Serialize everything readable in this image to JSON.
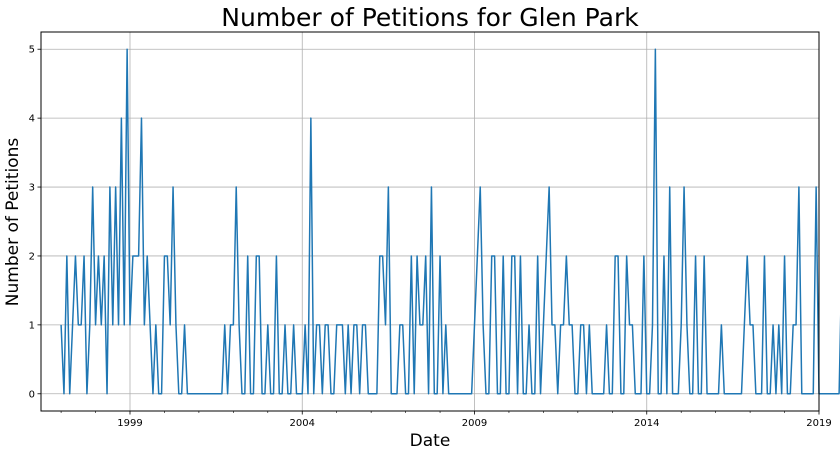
{
  "chart_data": {
    "type": "line",
    "title": "Number of Petitions for Glen Park",
    "xlabel": "Date",
    "ylabel": "Number of Petitions",
    "x_range": [
      "1996-06",
      "2019-01"
    ],
    "ylim": [
      -0.25,
      5.25
    ],
    "x_ticks": [
      {
        "date": "1999-01",
        "label": "1999"
      },
      {
        "date": "2004-01",
        "label": "2004"
      },
      {
        "date": "2009-01",
        "label": "2009"
      },
      {
        "date": "2014-01",
        "label": "2014"
      },
      {
        "date": "2019-01",
        "label": "2019"
      }
    ],
    "y_ticks": [
      {
        "value": 0,
        "label": "0"
      },
      {
        "value": 1,
        "label": "1"
      },
      {
        "value": 2,
        "label": "2"
      },
      {
        "value": 3,
        "label": "3"
      },
      {
        "value": 4,
        "label": "4"
      },
      {
        "value": 5,
        "label": "5"
      }
    ],
    "grid": true,
    "line_color": "#1f77b4",
    "start_month": "1997-01",
    "series": [
      {
        "values": [
          1,
          0,
          2,
          0,
          1,
          2,
          1,
          1,
          2,
          0,
          1,
          3,
          1,
          2,
          1,
          2,
          0,
          3,
          1,
          3,
          1,
          4,
          1,
          5,
          1,
          2,
          2,
          2,
          4,
          1,
          2,
          1,
          0,
          1,
          0,
          0,
          2,
          2,
          1,
          3,
          1,
          0,
          0,
          1,
          0,
          0,
          0,
          0,
          0,
          0,
          0,
          0,
          0,
          0,
          0,
          0,
          0,
          1,
          0,
          1,
          1,
          3,
          1,
          0,
          0,
          2,
          0,
          0,
          2,
          2,
          0,
          0,
          1,
          0,
          0,
          2,
          0,
          0,
          1,
          0,
          0,
          1,
          0,
          0,
          0,
          1,
          0,
          4,
          0,
          1,
          1,
          0,
          1,
          1,
          0,
          0,
          1,
          1,
          1,
          0,
          1,
          0,
          1,
          1,
          0,
          1,
          1,
          0,
          0,
          0,
          0,
          2,
          2,
          1,
          3,
          0,
          0,
          0,
          1,
          1,
          0,
          0,
          2,
          0,
          2,
          1,
          1,
          2,
          0,
          3,
          0,
          0,
          2,
          0,
          1,
          0,
          0,
          0,
          0,
          0,
          0,
          0,
          0,
          0,
          1,
          2,
          3,
          1,
          0,
          0,
          2,
          2,
          0,
          0,
          2,
          0,
          0,
          2,
          2,
          0,
          2,
          0,
          0,
          1,
          0,
          0,
          2,
          0,
          1,
          2,
          3,
          1,
          1,
          0,
          1,
          1,
          2,
          1,
          1,
          0,
          0,
          1,
          1,
          0,
          1,
          0,
          0,
          0,
          0,
          0,
          1,
          0,
          0,
          2,
          2,
          0,
          0,
          2,
          1,
          1,
          0,
          0,
          0,
          2,
          0,
          0,
          1,
          5,
          0,
          0,
          2,
          0,
          3,
          0,
          0,
          0,
          1,
          3,
          1,
          0,
          0,
          2,
          0,
          0,
          2,
          0,
          0,
          0,
          0,
          0,
          1,
          0,
          0,
          0,
          0,
          0,
          0,
          0,
          1,
          2,
          1,
          1,
          0,
          0,
          0,
          2,
          0,
          0,
          1,
          0,
          1,
          0,
          2,
          0,
          0,
          1,
          1,
          3,
          0,
          0,
          0,
          0,
          0,
          3,
          0,
          0,
          0,
          0,
          0,
          0,
          0,
          0,
          2,
          2,
          0,
          0,
          0,
          0
        ]
      }
    ]
  }
}
